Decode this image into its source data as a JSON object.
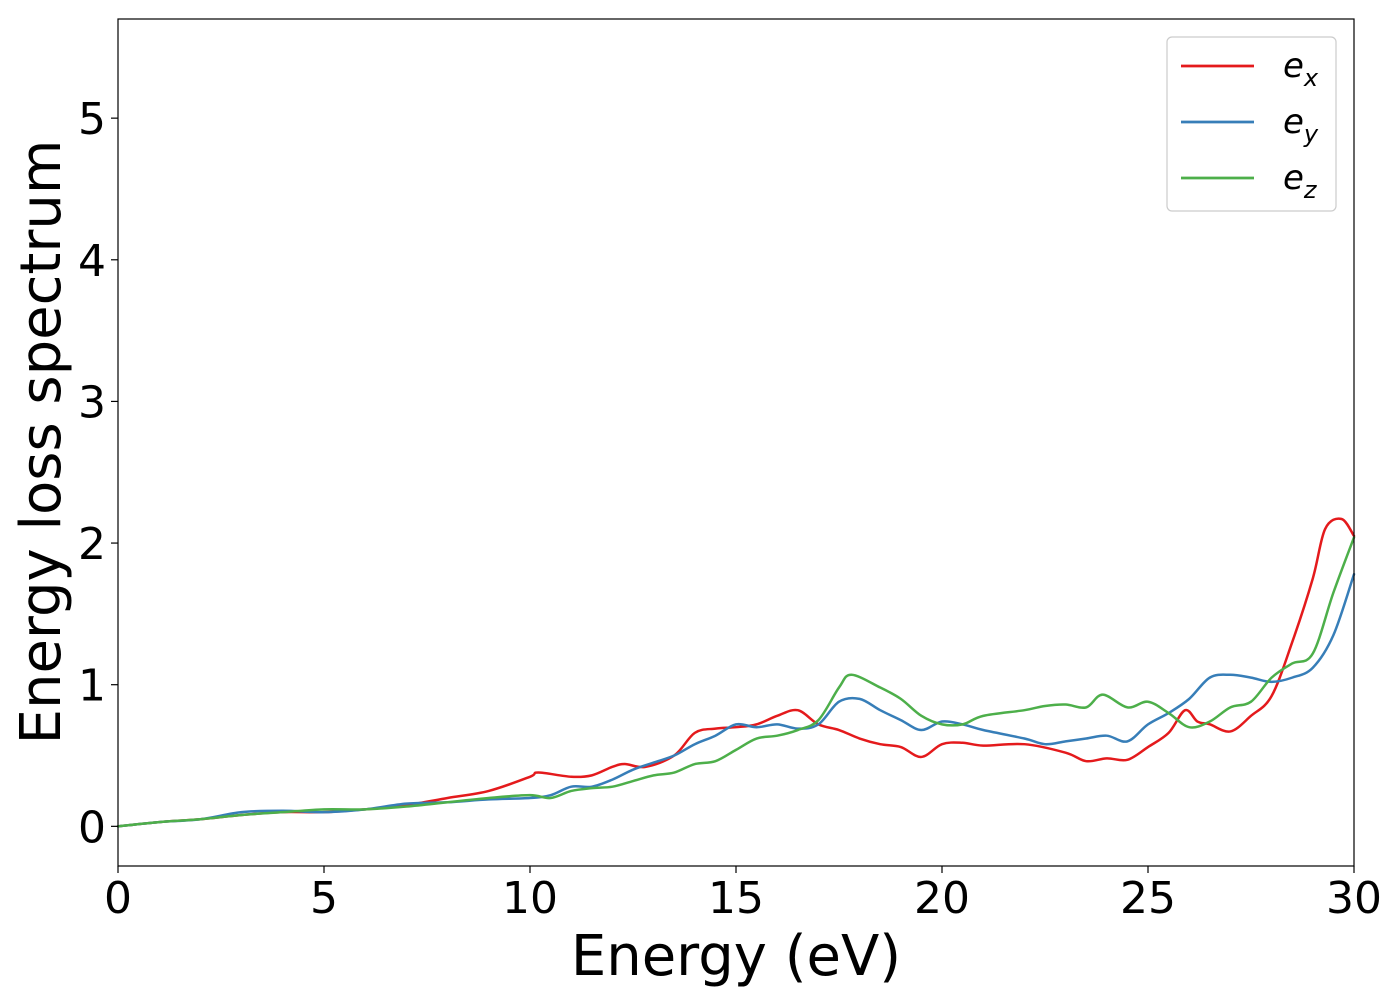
{
  "chart_data": {
    "type": "line",
    "xlabel": "Energy (eV)",
    "ylabel": "Energy loss spectrum",
    "xlim": [
      0,
      30
    ],
    "ylim": [
      -0.28,
      5.7
    ],
    "xticks": [
      0,
      5,
      10,
      15,
      20,
      25,
      30
    ],
    "yticks": [
      0,
      1,
      2,
      3,
      4,
      5
    ],
    "grid": false,
    "legend_position": "top-right",
    "series": [
      {
        "name": "e_x",
        "label_base": "e",
        "label_sub": "x",
        "color": "#e41a1c",
        "points": [
          [
            0,
            0
          ],
          [
            1,
            0.03
          ],
          [
            2,
            0.05
          ],
          [
            3,
            0.08
          ],
          [
            4,
            0.1
          ],
          [
            5,
            0.1
          ],
          [
            6,
            0.12
          ],
          [
            7,
            0.15
          ],
          [
            8,
            0.2
          ],
          [
            9,
            0.25
          ],
          [
            10,
            0.35
          ],
          [
            10.2,
            0.38
          ],
          [
            11,
            0.35
          ],
          [
            11.5,
            0.36
          ],
          [
            12,
            0.42
          ],
          [
            12.3,
            0.44
          ],
          [
            12.8,
            0.42
          ],
          [
            13.5,
            0.5
          ],
          [
            14,
            0.66
          ],
          [
            14.5,
            0.69
          ],
          [
            15,
            0.7
          ],
          [
            15.5,
            0.72
          ],
          [
            16,
            0.78
          ],
          [
            16.5,
            0.82
          ],
          [
            17,
            0.72
          ],
          [
            17.5,
            0.68
          ],
          [
            18,
            0.62
          ],
          [
            18.5,
            0.58
          ],
          [
            19,
            0.56
          ],
          [
            19.5,
            0.49
          ],
          [
            20,
            0.58
          ],
          [
            20.5,
            0.59
          ],
          [
            21,
            0.57
          ],
          [
            22,
            0.58
          ],
          [
            23,
            0.52
          ],
          [
            23.5,
            0.46
          ],
          [
            24,
            0.48
          ],
          [
            24.5,
            0.47
          ],
          [
            25,
            0.56
          ],
          [
            25.5,
            0.66
          ],
          [
            25.9,
            0.82
          ],
          [
            26.2,
            0.74
          ],
          [
            26.5,
            0.72
          ],
          [
            27,
            0.67
          ],
          [
            27.5,
            0.78
          ],
          [
            28,
            0.92
          ],
          [
            28.5,
            1.3
          ],
          [
            29,
            1.75
          ],
          [
            29.3,
            2.1
          ],
          [
            29.7,
            2.17
          ],
          [
            30,
            2.05
          ]
        ]
      },
      {
        "name": "e_y",
        "label_base": "e",
        "label_sub": "y",
        "color": "#377eb8",
        "points": [
          [
            0,
            0
          ],
          [
            1,
            0.03
          ],
          [
            2,
            0.05
          ],
          [
            3,
            0.1
          ],
          [
            4,
            0.11
          ],
          [
            5,
            0.1
          ],
          [
            6,
            0.12
          ],
          [
            7,
            0.16
          ],
          [
            8,
            0.17
          ],
          [
            9,
            0.19
          ],
          [
            10,
            0.2
          ],
          [
            10.5,
            0.22
          ],
          [
            11,
            0.28
          ],
          [
            11.5,
            0.28
          ],
          [
            12,
            0.33
          ],
          [
            12.5,
            0.4
          ],
          [
            13,
            0.45
          ],
          [
            13.5,
            0.5
          ],
          [
            14,
            0.58
          ],
          [
            14.5,
            0.64
          ],
          [
            15,
            0.72
          ],
          [
            15.5,
            0.7
          ],
          [
            16,
            0.72
          ],
          [
            16.5,
            0.69
          ],
          [
            17,
            0.72
          ],
          [
            17.5,
            0.88
          ],
          [
            18,
            0.9
          ],
          [
            18.5,
            0.82
          ],
          [
            19,
            0.75
          ],
          [
            19.5,
            0.68
          ],
          [
            20,
            0.74
          ],
          [
            20.5,
            0.72
          ],
          [
            21,
            0.68
          ],
          [
            22,
            0.62
          ],
          [
            22.5,
            0.58
          ],
          [
            23,
            0.6
          ],
          [
            23.5,
            0.62
          ],
          [
            24,
            0.64
          ],
          [
            24.5,
            0.6
          ],
          [
            25,
            0.72
          ],
          [
            25.5,
            0.8
          ],
          [
            26,
            0.9
          ],
          [
            26.5,
            1.05
          ],
          [
            27,
            1.07
          ],
          [
            27.5,
            1.05
          ],
          [
            28,
            1.02
          ],
          [
            28.5,
            1.05
          ],
          [
            29,
            1.12
          ],
          [
            29.5,
            1.35
          ],
          [
            30,
            1.78
          ]
        ]
      },
      {
        "name": "e_z",
        "label_base": "e",
        "label_sub": "z",
        "color": "#4daf4a",
        "points": [
          [
            0,
            0
          ],
          [
            1,
            0.03
          ],
          [
            2,
            0.05
          ],
          [
            3,
            0.08
          ],
          [
            4,
            0.1
          ],
          [
            5,
            0.12
          ],
          [
            6,
            0.12
          ],
          [
            7,
            0.14
          ],
          [
            8,
            0.17
          ],
          [
            9,
            0.2
          ],
          [
            10,
            0.22
          ],
          [
            10.5,
            0.2
          ],
          [
            11,
            0.25
          ],
          [
            11.5,
            0.27
          ],
          [
            12,
            0.28
          ],
          [
            12.5,
            0.32
          ],
          [
            13,
            0.36
          ],
          [
            13.5,
            0.38
          ],
          [
            14,
            0.44
          ],
          [
            14.5,
            0.46
          ],
          [
            15,
            0.54
          ],
          [
            15.5,
            0.62
          ],
          [
            16,
            0.64
          ],
          [
            16.5,
            0.68
          ],
          [
            17,
            0.75
          ],
          [
            17.5,
            0.98
          ],
          [
            17.8,
            1.07
          ],
          [
            18.5,
            0.98
          ],
          [
            19,
            0.9
          ],
          [
            19.5,
            0.78
          ],
          [
            20,
            0.72
          ],
          [
            20.5,
            0.72
          ],
          [
            21,
            0.78
          ],
          [
            22,
            0.82
          ],
          [
            22.5,
            0.85
          ],
          [
            23,
            0.86
          ],
          [
            23.5,
            0.84
          ],
          [
            23.9,
            0.93
          ],
          [
            24.5,
            0.84
          ],
          [
            25,
            0.88
          ],
          [
            25.5,
            0.8
          ],
          [
            26,
            0.7
          ],
          [
            26.5,
            0.74
          ],
          [
            27,
            0.84
          ],
          [
            27.5,
            0.88
          ],
          [
            28,
            1.05
          ],
          [
            28.5,
            1.15
          ],
          [
            29,
            1.22
          ],
          [
            29.5,
            1.65
          ],
          [
            30,
            2.04
          ]
        ]
      }
    ]
  }
}
